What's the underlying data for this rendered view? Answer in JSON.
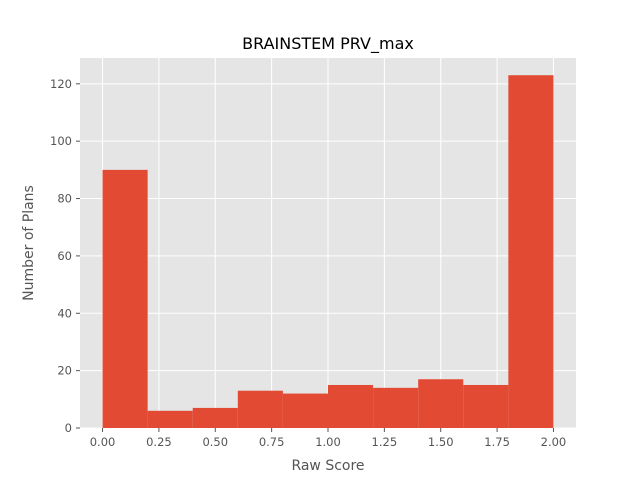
{
  "chart_data": {
    "type": "bar",
    "title": "BRAINSTEM PRV_max",
    "xlabel": "Raw Score",
    "ylabel": "Number of Plans",
    "bin_edges": [
      0.0,
      0.2,
      0.4,
      0.6,
      0.8,
      1.0,
      1.2,
      1.4,
      1.6,
      1.8,
      2.0
    ],
    "values": [
      90,
      6,
      7,
      13,
      12,
      15,
      14,
      17,
      15,
      123
    ],
    "xlim": [
      -0.1,
      2.1
    ],
    "ylim": [
      0,
      129
    ],
    "x_ticks": [
      0.0,
      0.25,
      0.5,
      0.75,
      1.0,
      1.25,
      1.5,
      1.75,
      2.0
    ],
    "x_tick_labels": [
      "0.00",
      "0.25",
      "0.50",
      "0.75",
      "1.00",
      "1.25",
      "1.50",
      "1.75",
      "2.00"
    ],
    "y_ticks": [
      0,
      20,
      40,
      60,
      80,
      100,
      120
    ],
    "y_tick_labels": [
      "0",
      "20",
      "40",
      "60",
      "80",
      "100",
      "120"
    ],
    "grid": true,
    "bar_color": "#E24A33",
    "background_color": "#E5E5E5",
    "grid_color": "#FFFFFF"
  }
}
